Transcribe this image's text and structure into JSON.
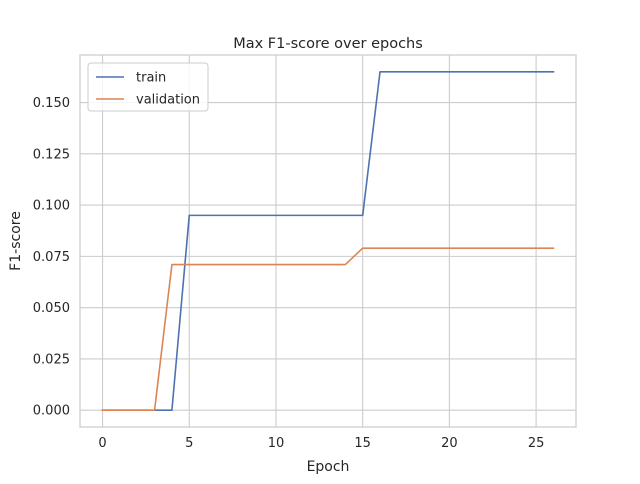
{
  "chart_data": {
    "type": "line",
    "title": "Max F1-score over epochs",
    "xlabel": "Epoch",
    "ylabel": "F1-score",
    "xlim": [
      -1.3,
      27.3
    ],
    "ylim": [
      -0.0082,
      0.1732
    ],
    "xticks": [
      0,
      5,
      10,
      15,
      20,
      25
    ],
    "yticks": [
      0.0,
      0.025,
      0.05,
      0.075,
      0.1,
      0.125,
      0.15
    ],
    "ytick_labels": [
      "0.000",
      "0.025",
      "0.050",
      "0.075",
      "0.100",
      "0.125",
      "0.150"
    ],
    "grid": true,
    "legend_position": "top-left",
    "x": [
      0,
      1,
      2,
      3,
      4,
      5,
      6,
      7,
      8,
      9,
      10,
      11,
      12,
      13,
      14,
      15,
      16,
      17,
      18,
      19,
      20,
      21,
      22,
      23,
      24,
      25,
      26
    ],
    "series": [
      {
        "name": "train",
        "color": "#4c72b0",
        "values": [
          0,
          0,
          0,
          0,
          0,
          0.095,
          0.095,
          0.095,
          0.095,
          0.095,
          0.095,
          0.095,
          0.095,
          0.095,
          0.095,
          0.095,
          0.165,
          0.165,
          0.165,
          0.165,
          0.165,
          0.165,
          0.165,
          0.165,
          0.165,
          0.165,
          0.165
        ]
      },
      {
        "name": "validation",
        "color": "#dd8452",
        "values": [
          0,
          0,
          0,
          0,
          0.071,
          0.071,
          0.071,
          0.071,
          0.071,
          0.071,
          0.071,
          0.071,
          0.071,
          0.071,
          0.071,
          0.079,
          0.079,
          0.079,
          0.079,
          0.079,
          0.079,
          0.079,
          0.079,
          0.079,
          0.079,
          0.079,
          0.079
        ]
      }
    ]
  }
}
